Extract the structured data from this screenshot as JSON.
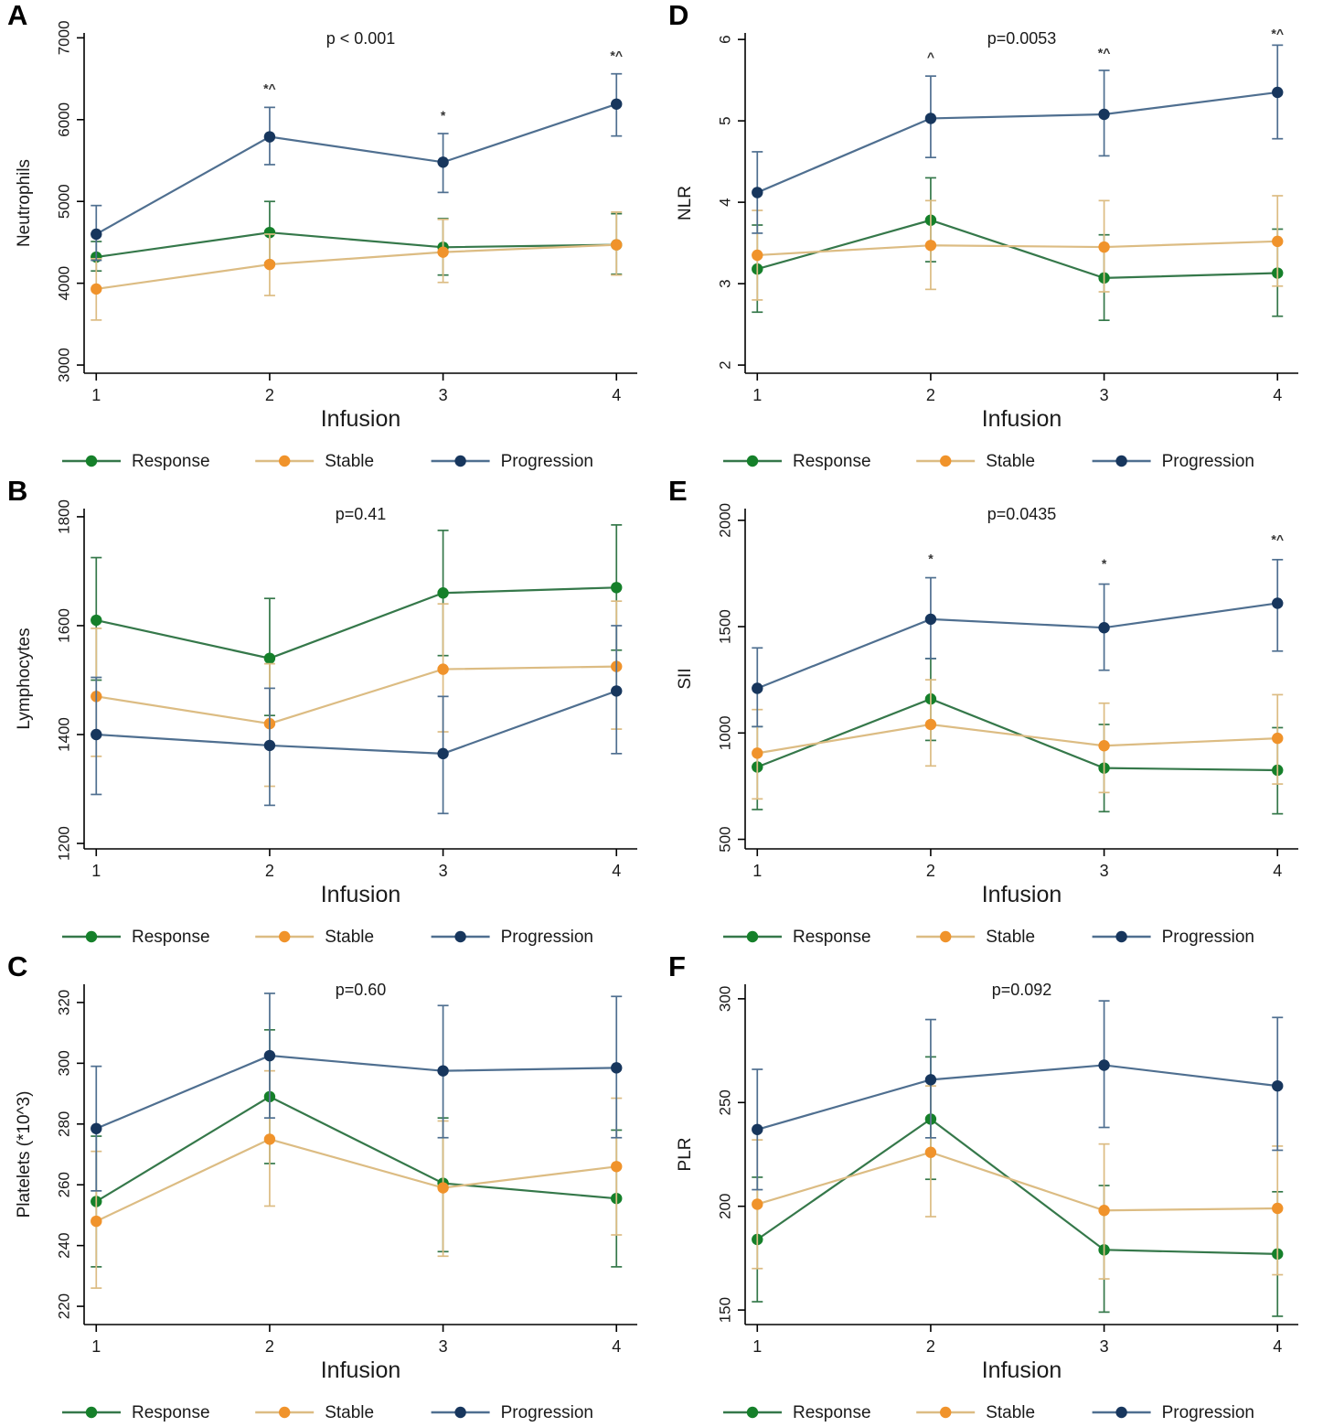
{
  "figure": {
    "background": "#ffffff",
    "panel_letters": [
      "A",
      "B",
      "C",
      "D",
      "E",
      "F"
    ]
  },
  "colors": {
    "response_line": "#35784a",
    "response_marker": "#15802a",
    "stable_line": "#dcbc83",
    "stable_marker": "#f0932b",
    "progression_line": "#4f6f90",
    "progression_marker": "#17365d",
    "axis": "#000000",
    "text": "#1a1a1a",
    "annotation": "#333333"
  },
  "chart_data": [
    {
      "panel": "A",
      "type": "line",
      "title": "p < 0.001",
      "xlabel": "Infusion",
      "ylabel": "Neutrophils",
      "x": [
        1,
        2,
        3,
        4
      ],
      "ylim": [
        2900,
        7060
      ],
      "yticks": [
        3000,
        4000,
        5000,
        6000,
        7000
      ],
      "legend_position": "bottom",
      "grid": false,
      "series": [
        {
          "name": "Response",
          "color": "response",
          "values": [
            4320,
            4620,
            4440,
            4470
          ],
          "ci_low": [
            4150,
            4250,
            4100,
            4110
          ],
          "ci_high": [
            4510,
            5000,
            4790,
            4850
          ]
        },
        {
          "name": "Stable",
          "color": "stable",
          "values": [
            3930,
            4230,
            4380,
            4470
          ],
          "ci_low": [
            3550,
            3850,
            4010,
            4100
          ],
          "ci_high": [
            4300,
            4600,
            4780,
            4870
          ]
        },
        {
          "name": "Progression",
          "color": "progression",
          "values": [
            4600,
            5790,
            5480,
            6190
          ],
          "ci_low": [
            4280,
            5450,
            5110,
            5800
          ],
          "ci_high": [
            4950,
            6150,
            5830,
            6560
          ]
        }
      ],
      "annotations": [
        {
          "x": 2,
          "y": 6330,
          "text": "*^"
        },
        {
          "x": 3,
          "y": 6000,
          "text": "*"
        },
        {
          "x": 4,
          "y": 6730,
          "text": "*^"
        }
      ]
    },
    {
      "panel": "B",
      "type": "line",
      "title": "p=0.41",
      "xlabel": "Infusion",
      "ylabel": "Lymphocytes",
      "x": [
        1,
        2,
        3,
        4
      ],
      "ylim": [
        1190,
        1815
      ],
      "yticks": [
        1200,
        1400,
        1600,
        1800
      ],
      "legend_position": "bottom",
      "grid": false,
      "series": [
        {
          "name": "Response",
          "color": "response",
          "values": [
            1610,
            1540,
            1660,
            1670
          ],
          "ci_low": [
            1500,
            1435,
            1545,
            1555
          ],
          "ci_high": [
            1725,
            1650,
            1775,
            1785
          ]
        },
        {
          "name": "Stable",
          "color": "stable",
          "values": [
            1470,
            1420,
            1520,
            1525
          ],
          "ci_low": [
            1360,
            1305,
            1405,
            1410
          ],
          "ci_high": [
            1595,
            1530,
            1640,
            1645
          ]
        },
        {
          "name": "Progression",
          "color": "progression",
          "values": [
            1400,
            1380,
            1365,
            1480
          ],
          "ci_low": [
            1290,
            1270,
            1255,
            1365
          ],
          "ci_high": [
            1505,
            1485,
            1470,
            1600
          ]
        }
      ],
      "annotations": []
    },
    {
      "panel": "C",
      "type": "line",
      "title": "p=0.60",
      "xlabel": "Infusion",
      "ylabel": "Platelets (*10^3)",
      "x": [
        1,
        2,
        3,
        4
      ],
      "ylim": [
        214,
        326
      ],
      "yticks": [
        220,
        240,
        260,
        280,
        300,
        320
      ],
      "legend_position": "bottom",
      "grid": false,
      "series": [
        {
          "name": "Response",
          "color": "response",
          "values": [
            254.5,
            289,
            260.5,
            255.5
          ],
          "ci_low": [
            233,
            267,
            238,
            233
          ],
          "ci_high": [
            276,
            311,
            282,
            278
          ]
        },
        {
          "name": "Stable",
          "color": "stable",
          "values": [
            248,
            275,
            259,
            266
          ],
          "ci_low": [
            226,
            253,
            236.5,
            243.5
          ],
          "ci_high": [
            271,
            297.5,
            281,
            288.5
          ]
        },
        {
          "name": "Progression",
          "color": "progression",
          "values": [
            278.5,
            302.5,
            297.5,
            298.5
          ],
          "ci_low": [
            258,
            282,
            275.5,
            275.5
          ],
          "ci_high": [
            299,
            323,
            319,
            322
          ]
        }
      ],
      "annotations": []
    },
    {
      "panel": "D",
      "type": "line",
      "title": "p=0.0053",
      "xlabel": "Infusion",
      "ylabel": "NLR",
      "x": [
        1,
        2,
        3,
        4
      ],
      "ylim": [
        1.9,
        6.08
      ],
      "yticks": [
        2,
        3,
        4,
        5,
        6
      ],
      "legend_position": "bottom",
      "grid": false,
      "series": [
        {
          "name": "Response",
          "color": "response",
          "values": [
            3.18,
            3.78,
            3.07,
            3.13
          ],
          "ci_low": [
            2.65,
            3.27,
            2.55,
            2.6
          ],
          "ci_high": [
            3.72,
            4.3,
            3.6,
            3.67
          ]
        },
        {
          "name": "Stable",
          "color": "stable",
          "values": [
            3.35,
            3.47,
            3.45,
            3.52
          ],
          "ci_low": [
            2.8,
            2.93,
            2.9,
            2.97
          ],
          "ci_high": [
            3.9,
            4.02,
            4.02,
            4.08
          ]
        },
        {
          "name": "Progression",
          "color": "progression",
          "values": [
            4.12,
            5.03,
            5.08,
            5.35
          ],
          "ci_low": [
            3.62,
            4.55,
            4.57,
            4.78
          ],
          "ci_high": [
            4.62,
            5.55,
            5.62,
            5.93
          ]
        }
      ],
      "annotations": [
        {
          "x": 2,
          "y": 5.73,
          "text": "^"
        },
        {
          "x": 3,
          "y": 5.78,
          "text": "*^"
        },
        {
          "x": 4,
          "y": 6.02,
          "text": "*^"
        }
      ]
    },
    {
      "panel": "E",
      "type": "line",
      "title": "p=0.0435",
      "xlabel": "Infusion",
      "ylabel": "SII",
      "x": [
        1,
        2,
        3,
        4
      ],
      "ylim": [
        455,
        2055
      ],
      "yticks": [
        500,
        1000,
        1500,
        2000
      ],
      "legend_position": "bottom",
      "grid": false,
      "series": [
        {
          "name": "Response",
          "color": "response",
          "values": [
            840,
            1160,
            835,
            825
          ],
          "ci_low": [
            640,
            965,
            630,
            620
          ],
          "ci_high": [
            1030,
            1350,
            1040,
            1025
          ]
        },
        {
          "name": "Stable",
          "color": "stable",
          "values": [
            905,
            1040,
            940,
            975
          ],
          "ci_low": [
            690,
            845,
            720,
            760
          ],
          "ci_high": [
            1110,
            1250,
            1140,
            1180
          ]
        },
        {
          "name": "Progression",
          "color": "progression",
          "values": [
            1210,
            1535,
            1495,
            1610
          ],
          "ci_low": [
            1030,
            1350,
            1295,
            1385
          ],
          "ci_high": [
            1400,
            1730,
            1700,
            1815
          ]
        }
      ],
      "annotations": [
        {
          "x": 2,
          "y": 1800,
          "text": "*"
        },
        {
          "x": 3,
          "y": 1775,
          "text": "*"
        },
        {
          "x": 4,
          "y": 1890,
          "text": "*^"
        }
      ]
    },
    {
      "panel": "F",
      "type": "line",
      "title": "p=0.092",
      "xlabel": "Infusion",
      "ylabel": "PLR",
      "x": [
        1,
        2,
        3,
        4
      ],
      "ylim": [
        143,
        307
      ],
      "yticks": [
        150,
        200,
        250,
        300
      ],
      "legend_position": "bottom",
      "grid": false,
      "series": [
        {
          "name": "Response",
          "color": "response",
          "values": [
            184,
            242,
            179,
            177
          ],
          "ci_low": [
            154,
            213,
            149,
            147
          ],
          "ci_high": [
            214,
            272,
            210,
            207
          ]
        },
        {
          "name": "Stable",
          "color": "stable",
          "values": [
            201,
            226,
            198,
            199
          ],
          "ci_low": [
            170,
            195,
            165,
            167
          ],
          "ci_high": [
            232,
            258,
            230,
            229
          ]
        },
        {
          "name": "Progression",
          "color": "progression",
          "values": [
            237,
            261,
            268,
            258
          ],
          "ci_low": [
            208,
            233,
            238,
            227
          ],
          "ci_high": [
            266,
            290,
            299,
            291
          ]
        }
      ],
      "annotations": []
    }
  ]
}
